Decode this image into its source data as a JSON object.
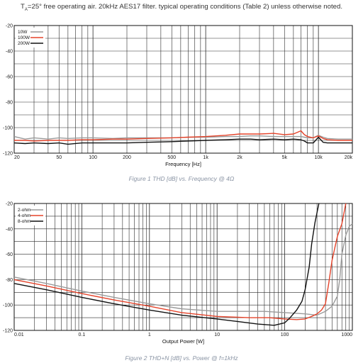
{
  "header": {
    "pre": "T",
    "sub": "A",
    "post": "=25° free operating air. 20kHz AES17 filter. typical operating conditions (Table 2) unless otherwise noted."
  },
  "captions": {
    "fig1": "Figure 1 THD [dB] vs. Frequency @ 4Ω",
    "fig2": "Figure 2 THD+N [dB] vs. Power @ f=1kHz"
  },
  "chart_data": [
    {
      "type": "line",
      "title": "Figure 1 THD [dB] vs. Frequency @ 4Ω",
      "xlabel": "Frequency [Hz]",
      "ylabel": "",
      "xscale": "log",
      "xlim": [
        20,
        20000
      ],
      "ylim": [
        -120,
        -20
      ],
      "xticks": [
        20,
        50,
        100,
        200,
        500,
        1000,
        2000,
        5000,
        10000,
        20000
      ],
      "xtick_labels": [
        "20",
        "50",
        "100",
        "200",
        "500",
        "1k",
        "2k",
        "5k",
        "10k",
        "20k"
      ],
      "yticks": [
        -20,
        -40,
        -60,
        -80,
        -100,
        -120
      ],
      "grid": true,
      "legend": "top-left",
      "series": [
        {
          "name": "10W",
          "color": "#9a9a9a",
          "x": [
            20,
            25,
            30,
            40,
            50,
            60,
            80,
            100,
            150,
            200,
            300,
            500,
            700,
            1000,
            1500,
            2000,
            2500,
            3000,
            4000,
            5000,
            6000,
            7000,
            7500,
            8000,
            9000,
            10000,
            11000,
            12000,
            15000,
            20000
          ],
          "y": [
            -107,
            -109,
            -108,
            -109,
            -108,
            -108.5,
            -108,
            -108,
            -108.5,
            -108,
            -108,
            -108,
            -107.5,
            -107.5,
            -107,
            -107,
            -106.5,
            -106.5,
            -107,
            -107,
            -107,
            -107,
            -107.5,
            -108,
            -108,
            -106,
            -107.5,
            -108.5,
            -109,
            -109
          ]
        },
        {
          "name": "100W",
          "color": "#e5432a",
          "x": [
            20,
            25,
            30,
            40,
            50,
            60,
            80,
            100,
            150,
            200,
            300,
            500,
            700,
            1000,
            1500,
            2000,
            2500,
            3000,
            4000,
            5000,
            6000,
            7000,
            7500,
            8000,
            9000,
            10000,
            11000,
            12000,
            15000,
            20000
          ],
          "y": [
            -110,
            -110,
            -110.5,
            -110,
            -110,
            -110,
            -109.5,
            -109.5,
            -109,
            -109,
            -108.5,
            -108,
            -107.5,
            -107,
            -106,
            -105,
            -105,
            -105,
            -104.5,
            -105.5,
            -105,
            -102.5,
            -105.5,
            -107,
            -108,
            -106.5,
            -108.5,
            -109.5,
            -110,
            -110
          ]
        },
        {
          "name": "200W",
          "color": "#111111",
          "x": [
            20,
            25,
            30,
            40,
            50,
            60,
            80,
            100,
            150,
            200,
            300,
            500,
            700,
            1000,
            1500,
            2000,
            2500,
            3000,
            4000,
            5000,
            6000,
            7000,
            7500,
            8000,
            9000,
            10000,
            11000,
            12000,
            15000,
            20000
          ],
          "y": [
            -112,
            -112.5,
            -112,
            -112.5,
            -112,
            -113,
            -112,
            -112,
            -112,
            -112,
            -111.5,
            -111,
            -110.5,
            -110,
            -109.5,
            -109,
            -109,
            -109.5,
            -109,
            -109.5,
            -109,
            -109.5,
            -110.5,
            -112,
            -112,
            -107.5,
            -111.5,
            -112,
            -112,
            -112
          ]
        }
      ]
    },
    {
      "type": "line",
      "title": "Figure 2 THD+N [dB] vs. Power @ f=1kHz",
      "xlabel": "Output Power [W]",
      "ylabel": "",
      "xscale": "log",
      "xlim": [
        0.01,
        1000
      ],
      "ylim": [
        -120,
        -20
      ],
      "xticks": [
        0.01,
        0.1,
        1,
        10,
        100,
        1000
      ],
      "xtick_labels": [
        "0.01",
        "0.1",
        "1",
        "10",
        "100",
        "1000"
      ],
      "yticks": [
        -20,
        -40,
        -60,
        -80,
        -100,
        -120
      ],
      "grid": true,
      "legend": "top-left",
      "series": [
        {
          "name": "2-ohm",
          "color": "#9a9a9a",
          "x": [
            0.01,
            0.03,
            0.1,
            0.3,
            1,
            3,
            10,
            20,
            50,
            100,
            200,
            300,
            400,
            500,
            600,
            650,
            700,
            800,
            900,
            1000
          ],
          "y": [
            -78,
            -83,
            -89,
            -94,
            -99,
            -103,
            -105,
            -105,
            -105,
            -106,
            -107,
            -108,
            -105,
            -101,
            -93,
            -80,
            -60,
            -45,
            -38,
            -36
          ]
        },
        {
          "name": "4-ohm",
          "color": "#e5432a",
          "x": [
            0.01,
            0.03,
            0.1,
            0.3,
            1,
            3,
            10,
            30,
            60,
            100,
            150,
            200,
            250,
            300,
            350,
            400,
            450,
            500,
            550,
            600,
            700,
            800
          ],
          "y": [
            -80,
            -85,
            -91,
            -96,
            -101,
            -106,
            -109,
            -110,
            -110,
            -111,
            -111.5,
            -111,
            -109,
            -107,
            -104,
            -99,
            -82,
            -65,
            -55,
            -46,
            -36,
            -20
          ]
        },
        {
          "name": "8-ohm",
          "color": "#111111",
          "x": [
            0.01,
            0.03,
            0.1,
            0.3,
            1,
            3,
            10,
            20,
            40,
            70,
            100,
            120,
            150,
            180,
            200,
            230,
            250,
            280,
            320
          ],
          "y": [
            -83,
            -88,
            -94,
            -99,
            -104,
            -108,
            -111,
            -113,
            -115,
            -116,
            -114,
            -110,
            -104,
            -97,
            -88,
            -70,
            -52,
            -35,
            -20
          ]
        }
      ]
    }
  ]
}
